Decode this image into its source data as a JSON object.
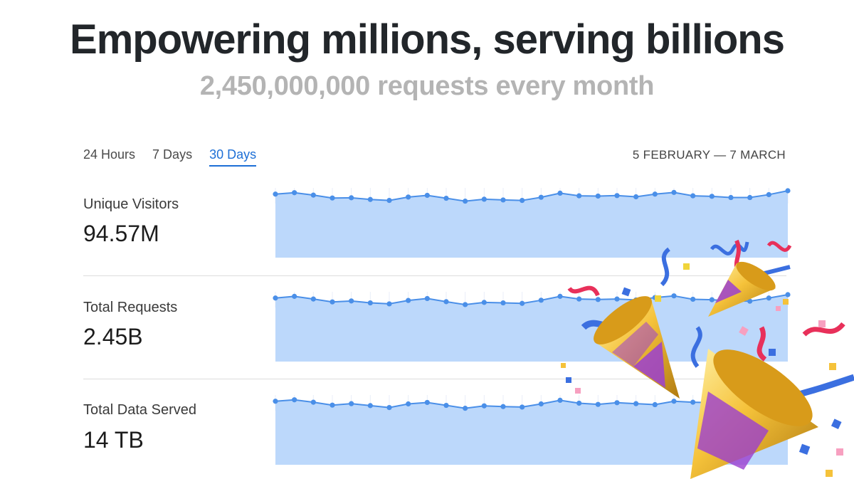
{
  "hero": {
    "title": "Empowering millions, serving billions",
    "subtitle": "2,450,000,000 requests every month"
  },
  "tabs": [
    {
      "label": "24 Hours",
      "active": false
    },
    {
      "label": "7 Days",
      "active": false
    },
    {
      "label": "30 Days",
      "active": true
    }
  ],
  "date_range": "5 FEBRUARY — 7 MARCH",
  "metrics": [
    {
      "label": "Unique Visitors",
      "value": "94.57M"
    },
    {
      "label": "Total Requests",
      "value": "2.45B"
    },
    {
      "label": "Total Data Served",
      "value": "14 TB"
    }
  ],
  "colors": {
    "accent": "#1d6fd6",
    "area_fill": "#bcd8fb",
    "line": "#4a8fe8"
  },
  "decoration": {
    "icon": "party-popper-icon"
  },
  "chart_data": [
    {
      "type": "area",
      "series": [
        {
          "values": [
            0.86,
            0.92,
            0.82,
            0.7,
            0.71,
            0.64,
            0.6,
            0.74,
            0.81,
            0.69,
            0.57,
            0.65,
            0.62,
            0.6,
            0.73,
            0.9,
            0.79,
            0.78,
            0.8,
            0.75,
            0.86,
            0.93,
            0.79,
            0.77,
            0.72,
            0.72,
            0.84,
            1.0
          ]
        }
      ]
    },
    {
      "type": "area",
      "series": [
        {
          "values": [
            0.86,
            0.93,
            0.82,
            0.7,
            0.74,
            0.66,
            0.62,
            0.76,
            0.84,
            0.71,
            0.59,
            0.68,
            0.66,
            0.64,
            0.77,
            0.93,
            0.82,
            0.8,
            0.82,
            0.78,
            0.88,
            0.95,
            0.81,
            0.79,
            0.74,
            0.73,
            0.86,
            1.0
          ]
        }
      ]
    },
    {
      "type": "area",
      "series": [
        {
          "values": [
            0.86,
            0.92,
            0.82,
            0.7,
            0.76,
            0.68,
            0.6,
            0.75,
            0.81,
            0.69,
            0.57,
            0.67,
            0.64,
            0.62,
            0.75,
            0.9,
            0.78,
            0.73,
            0.8,
            0.76,
            0.72,
            0.86,
            0.82,
            0.8,
            0.74,
            0.72,
            0.84,
            1.0
          ]
        }
      ]
    }
  ]
}
